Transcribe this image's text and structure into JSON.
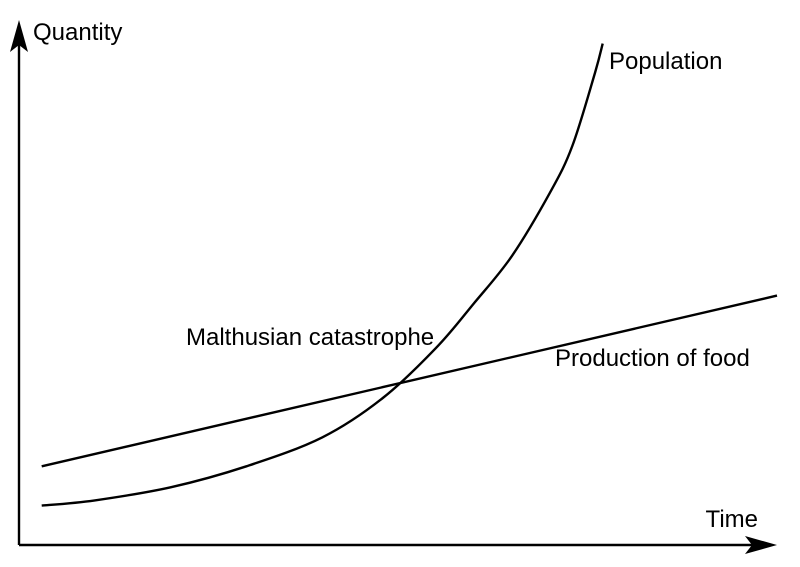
{
  "chart_data": {
    "type": "line",
    "title": "",
    "xlabel": "Time",
    "ylabel": "Quantity",
    "grid": false,
    "axis_ticks": false,
    "xlim": [
      0,
      10
    ],
    "ylim": [
      0,
      10
    ],
    "series": [
      {
        "name": "Population",
        "shape": "exponential",
        "x": [
          0.3,
          1.0,
          2.0,
          3.0,
          4.0,
          4.8,
          5.5,
          6.0,
          6.5,
          7.0,
          7.3,
          7.6,
          7.7
        ],
        "y": [
          0.75,
          0.85,
          1.1,
          1.5,
          2.05,
          2.8,
          3.75,
          4.6,
          5.5,
          6.7,
          7.6,
          9.0,
          9.55
        ]
      },
      {
        "name": "Production of food",
        "shape": "linear",
        "x": [
          0.3,
          10.0
        ],
        "y": [
          1.5,
          4.75
        ]
      }
    ],
    "annotations": [
      {
        "text": "Malthusian catastrophe",
        "at_series_intersection": true
      }
    ]
  }
}
